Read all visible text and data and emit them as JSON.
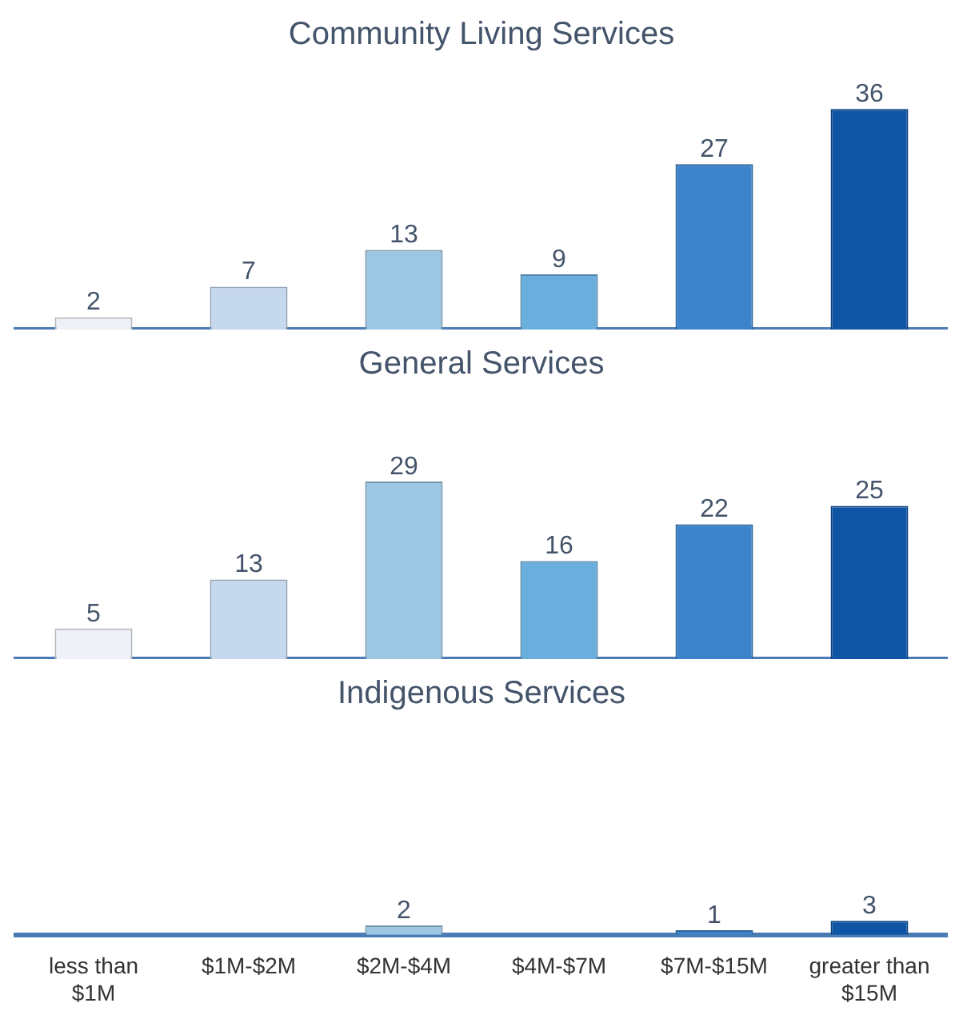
{
  "chart_data": [
    {
      "type": "bar",
      "title": "Community Living Services",
      "categories": [
        null,
        null,
        null,
        null,
        null,
        null
      ],
      "values": [
        2,
        7,
        13,
        9,
        27,
        36
      ],
      "colors": [
        "#eef2f8",
        "#c5d8ee",
        "#9dc6e4",
        "#6aaedd",
        "#3b84cc",
        "#0e55a5"
      ],
      "data_labels": true,
      "grid": false,
      "legend": false,
      "tick_labels": false
    },
    {
      "type": "bar",
      "title": "General Services",
      "categories": [
        null,
        null,
        null,
        null,
        null,
        null
      ],
      "values": [
        5,
        13,
        29,
        16,
        22,
        25
      ],
      "colors": [
        "#eef2f8",
        "#c5d8ee",
        "#9dc6e4",
        "#6aaedd",
        "#3b84cc",
        "#0e55a5"
      ],
      "data_labels": true,
      "grid": false,
      "legend": false,
      "tick_labels": false
    },
    {
      "type": "bar",
      "title": "Indigenous Services",
      "categories": [
        "less than $1M",
        "$1M-$2M",
        "$2M-$4M",
        "$4M-$7M",
        "$7M-$15M",
        "greater than $15M"
      ],
      "values": [
        null,
        null,
        2,
        null,
        1,
        3
      ],
      "colors": [
        "#eef2f8",
        "#c5d8ee",
        "#9dc6e4",
        "#6aaedd",
        "#3b84cc",
        "#0e55a5"
      ],
      "data_labels": true,
      "grid": false,
      "legend": false,
      "tick_labels": "x"
    }
  ]
}
